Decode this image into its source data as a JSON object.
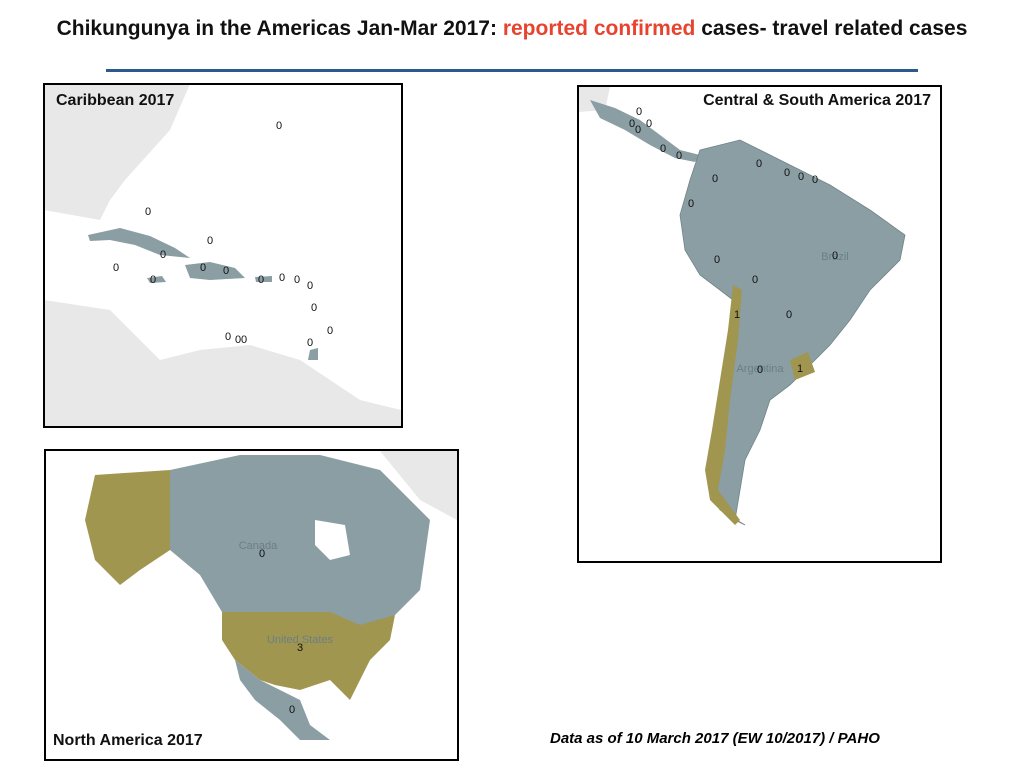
{
  "header": {
    "title_start": "Chikungunya in the Americas Jan-Mar 2017:",
    "title_highlight": "reported confirmed",
    "title_end": "cases- travel related cases"
  },
  "panels": [
    {
      "title": "Caribbean 2017",
      "labels": [
        0,
        0,
        0,
        0,
        0,
        0,
        0,
        0,
        0,
        0,
        0,
        0,
        0,
        0,
        0,
        0,
        0,
        0
      ]
    },
    {
      "title": "Central & South America  2017",
      "country_names": [
        "Brazil",
        "Argentina"
      ],
      "labels": [
        0,
        0,
        0,
        0,
        0,
        0,
        0,
        0,
        0,
        0,
        0,
        0,
        0,
        0,
        0,
        1,
        0,
        0,
        1
      ]
    },
    {
      "title": "North America  2017",
      "country_names": [
        "Canada",
        "United States"
      ],
      "labels": [
        0,
        3,
        0
      ]
    }
  ],
  "footnote": "Data as of 10 March 2017 (EW 10/2017) / PAHO"
}
